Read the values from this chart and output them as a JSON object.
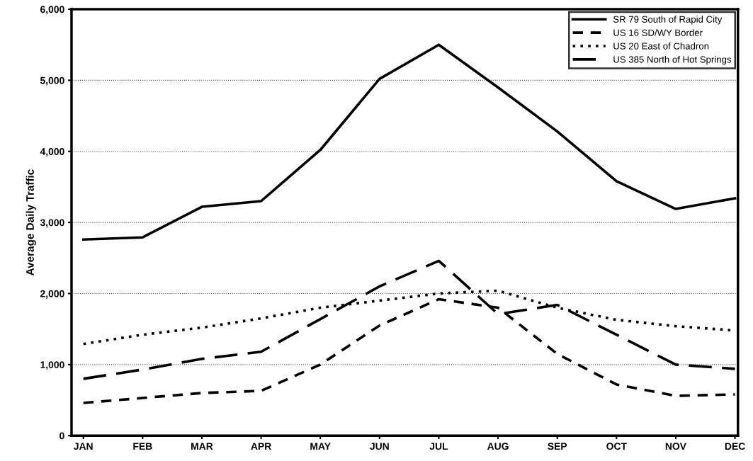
{
  "chart_data": {
    "type": "line",
    "ylabel": "Average Daily Traffic",
    "categories": [
      "JAN",
      "FEB",
      "MAR",
      "APR",
      "MAY",
      "JUN",
      "JUL",
      "AUG",
      "SEP",
      "OCT",
      "NOV",
      "DEC"
    ],
    "series": [
      {
        "name": "SR 79 South of Rapid City",
        "color": "#000000",
        "line_style": "solid",
        "values": [
          2760,
          2790,
          3220,
          3300,
          4020,
          5020,
          5500,
          4900,
          4280,
          3580,
          3190,
          3340
        ]
      },
      {
        "name": "US 16 SD/WY Border",
        "color": "#000000",
        "line_style": "dashed",
        "values": [
          460,
          530,
          600,
          630,
          1000,
          1550,
          1920,
          1800,
          1150,
          720,
          560,
          580
        ]
      },
      {
        "name": "US 20 East of Chadron",
        "color": "#000000",
        "line_style": "dotted",
        "values": [
          1290,
          1420,
          1520,
          1650,
          1800,
          1900,
          2000,
          2040,
          1800,
          1630,
          1540,
          1480
        ]
      },
      {
        "name": "US 385 North of Hot Springs",
        "color": "#000000",
        "line_style": "longdash",
        "values": [
          800,
          930,
          1080,
          1180,
          1640,
          2100,
          2460,
          1710,
          1840,
          1420,
          1000,
          940
        ]
      }
    ],
    "ylim": [
      0,
      6000
    ],
    "yticks": [
      {
        "value": 0,
        "label": "0"
      },
      {
        "value": 1000,
        "label": "1,000"
      },
      {
        "value": 2000,
        "label": "2,000"
      },
      {
        "value": 3000,
        "label": "3,000"
      },
      {
        "value": 4000,
        "label": "4,000"
      },
      {
        "value": 5000,
        "label": "5,000"
      },
      {
        "value": 6000,
        "label": "6,000"
      }
    ],
    "grid": "y",
    "legend": "top right",
    "marker": "none"
  }
}
